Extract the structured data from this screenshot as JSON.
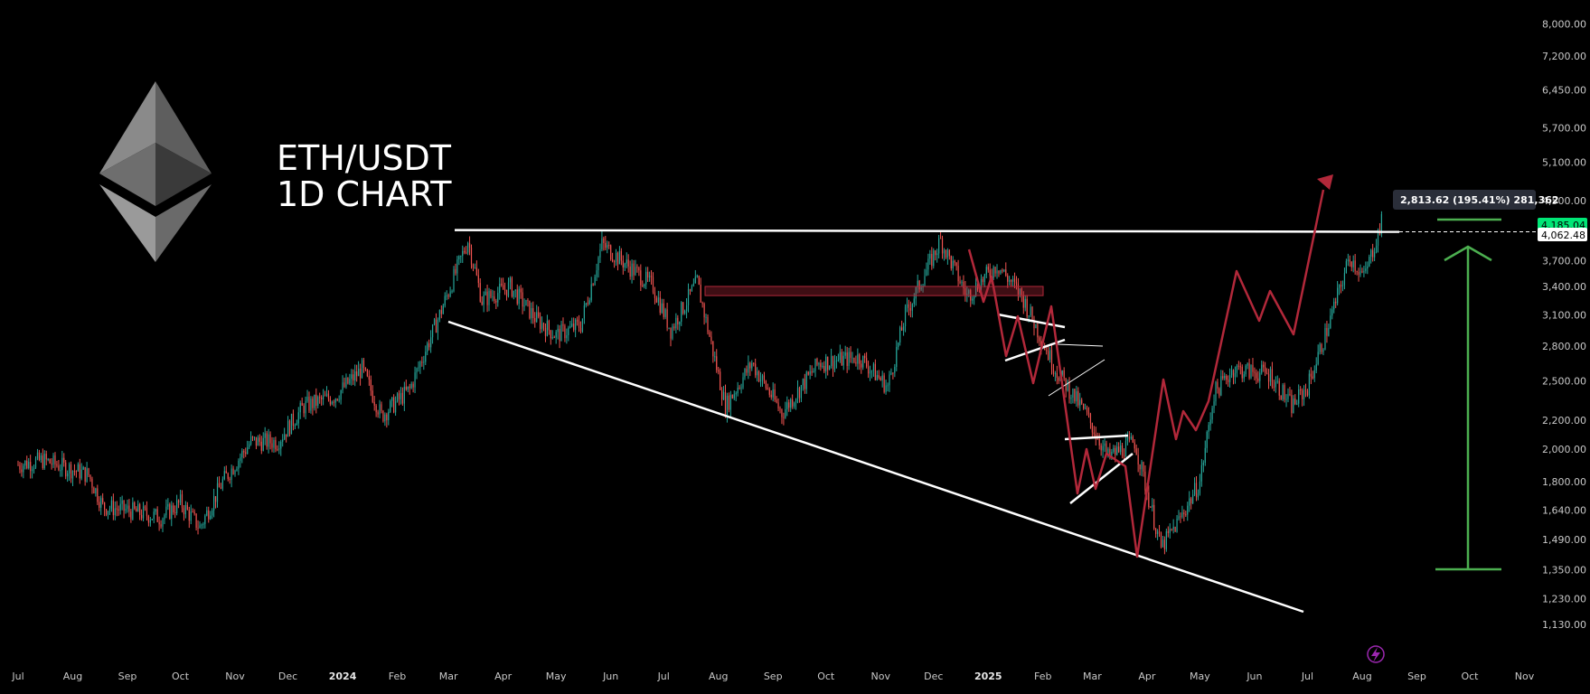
{
  "chart_data": {
    "type": "line",
    "title": "ETH/USDT",
    "subtitle": "1D CHART",
    "y_scale": "log",
    "ylim": [
      1050,
      8200
    ],
    "y_ticks": [
      "8,000.00",
      "7,200.00",
      "6,450.00",
      "5,700.00",
      "5,100.00",
      "4,500.00",
      "3,700.00",
      "3,400.00",
      "3,100.00",
      "2,800.00",
      "2,500.00",
      "2,200.00",
      "2,000.00",
      "1,800.00",
      "1,640.00",
      "1,490.00",
      "1,350.00",
      "1,230.00",
      "1,130.00"
    ],
    "x_ticks": [
      {
        "label": "Jul",
        "bold": false
      },
      {
        "label": "Aug",
        "bold": false
      },
      {
        "label": "Sep",
        "bold": false
      },
      {
        "label": "Oct",
        "bold": false
      },
      {
        "label": "Nov",
        "bold": false
      },
      {
        "label": "Dec",
        "bold": false
      },
      {
        "label": "2024",
        "bold": true
      },
      {
        "label": "Feb",
        "bold": false
      },
      {
        "label": "Mar",
        "bold": false
      },
      {
        "label": "Apr",
        "bold": false
      },
      {
        "label": "May",
        "bold": false
      },
      {
        "label": "Jun",
        "bold": false
      },
      {
        "label": "Jul",
        "bold": false
      },
      {
        "label": "Aug",
        "bold": false
      },
      {
        "label": "Sep",
        "bold": false
      },
      {
        "label": "Oct",
        "bold": false
      },
      {
        "label": "Nov",
        "bold": false
      },
      {
        "label": "Dec",
        "bold": false
      },
      {
        "label": "2025",
        "bold": true
      },
      {
        "label": "Feb",
        "bold": false
      },
      {
        "label": "Mar",
        "bold": false
      },
      {
        "label": "Apr",
        "bold": false
      },
      {
        "label": "May",
        "bold": false
      },
      {
        "label": "Jun",
        "bold": false
      },
      {
        "label": "Jul",
        "bold": false
      },
      {
        "label": "Aug",
        "bold": false
      },
      {
        "label": "Sep",
        "bold": false
      },
      {
        "label": "Oct",
        "bold": false
      },
      {
        "label": "Nov",
        "bold": false
      }
    ],
    "price_path": [
      [
        "2023-07-01",
        1900
      ],
      [
        "2023-07-15",
        1930
      ],
      [
        "2023-08-10",
        1840
      ],
      [
        "2023-08-18",
        1660
      ],
      [
        "2023-09-01",
        1640
      ],
      [
        "2023-09-20",
        1600
      ],
      [
        "2023-10-01",
        1680
      ],
      [
        "2023-10-12",
        1550
      ],
      [
        "2023-10-25",
        1800
      ],
      [
        "2023-11-10",
        2050
      ],
      [
        "2023-11-25",
        2050
      ],
      [
        "2023-12-10",
        2300
      ],
      [
        "2023-12-28",
        2380
      ],
      [
        "2024-01-12",
        2600
      ],
      [
        "2024-01-23",
        2230
      ],
      [
        "2024-02-08",
        2430
      ],
      [
        "2024-02-25",
        3100
      ],
      [
        "2024-03-12",
        3950
      ],
      [
        "2024-03-20",
        3250
      ],
      [
        "2024-04-05",
        3400
      ],
      [
        "2024-04-20",
        3050
      ],
      [
        "2024-05-01",
        2900
      ],
      [
        "2024-05-15",
        3000
      ],
      [
        "2024-05-27",
        3900
      ],
      [
        "2024-06-10",
        3650
      ],
      [
        "2024-06-25",
        3400
      ],
      [
        "2024-07-05",
        2950
      ],
      [
        "2024-07-20",
        3450
      ],
      [
        "2024-08-05",
        2300
      ],
      [
        "2024-08-20",
        2650
      ],
      [
        "2024-09-06",
        2250
      ],
      [
        "2024-09-27",
        2650
      ],
      [
        "2024-10-20",
        2700
      ],
      [
        "2024-11-05",
        2450
      ],
      [
        "2024-11-15",
        3100
      ],
      [
        "2024-12-05",
        3950
      ],
      [
        "2024-12-20",
        3300
      ],
      [
        "2025-01-06",
        3650
      ],
      [
        "2025-01-20",
        3300
      ],
      [
        "2025-02-02",
        2800
      ],
      [
        "2025-02-08",
        2600
      ],
      [
        "2025-02-25",
        2250
      ],
      [
        "2025-03-10",
        1950
      ],
      [
        "2025-03-25",
        2050
      ],
      [
        "2025-04-09",
        1450
      ],
      [
        "2025-04-20",
        1600
      ],
      [
        "2025-05-01",
        1800
      ],
      [
        "2025-05-09",
        2400
      ],
      [
        "2025-05-20",
        2600
      ],
      [
        "2025-06-10",
        2550
      ],
      [
        "2025-06-22",
        2300
      ],
      [
        "2025-07-01",
        2450
      ],
      [
        "2025-07-12",
        2950
      ],
      [
        "2025-07-25",
        3750
      ],
      [
        "2025-08-02",
        3500
      ],
      [
        "2025-08-12",
        4185
      ]
    ],
    "last_price": "4,185.04",
    "resistance_level": "4,062.48",
    "measure_label": "2,813.62 (195.41%) 281,362",
    "colors": {
      "up": "#26a69a",
      "down": "#ef5350",
      "trendline": "#ffffff",
      "projection": "#b2283a",
      "measure": "#4caf50",
      "last_price_bg": "#00e676",
      "zone": "#b2283a"
    }
  },
  "logo": {
    "icon": "ethereum-diamond-icon"
  },
  "badge": {
    "icon": "lightning-icon"
  }
}
